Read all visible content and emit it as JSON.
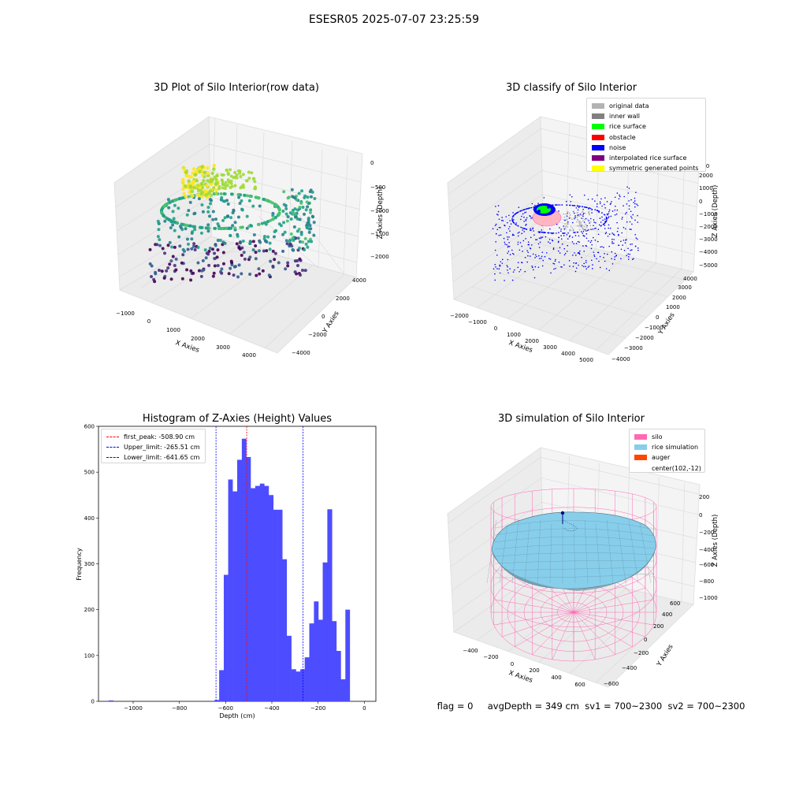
{
  "suptitle": "ESESR05 2025-07-07 23:25:59",
  "status_line": "flag = 0     avgDepth = 349 cm  sv1 = 700~2300  sv2 = 700~2300",
  "icons": {
    "rice-surface-marker": "green-dot-cluster",
    "auger-marker": "navy-dot"
  },
  "chart_data": [
    {
      "type": "scatter",
      "projection": "3d",
      "title": "3D Plot of Silo Interior(row data)",
      "xlabel": "X Axies",
      "ylabel": "Y Axies",
      "zlabel": "Z Axies (Depth)",
      "x_ticks": [
        "−1000",
        "0",
        "1000",
        "2000",
        "3000",
        "4000"
      ],
      "y_ticks": [
        "−4000",
        "−2000",
        "0",
        "2000",
        "4000"
      ],
      "z_ticks": [
        "0",
        "−500",
        "−1000",
        "−1500",
        "−2000"
      ],
      "xlim": [
        -1300,
        4600
      ],
      "ylim": [
        -4800,
        4800
      ],
      "zlim": [
        -2300,
        100
      ],
      "colormap": "viridis",
      "grid": true
    },
    {
      "type": "scatter",
      "projection": "3d",
      "title": "3D classify of Silo Interior",
      "xlabel": "X Axies",
      "ylabel": "Y Axies",
      "zlabel": "Z Axies (Depth)",
      "x_ticks": [
        "−2000",
        "−1000",
        "0",
        "1000",
        "2000",
        "3000",
        "4000",
        "5000"
      ],
      "y_ticks": [
        "−4000",
        "−3000",
        "−2000",
        "−1000",
        "0",
        "1000",
        "2000",
        "3000",
        "4000"
      ],
      "z_ticks": [
        "2000",
        "1000",
        "0",
        "−1000",
        "−2000",
        "−3000",
        "−4000",
        "−5000"
      ],
      "z_tick_partial_top": "000",
      "legend": [
        {
          "label": "original data",
          "color": "#b3b3b3"
        },
        {
          "label": "inner wall",
          "color": "#808080"
        },
        {
          "label": "rice surface",
          "color": "#00ff00"
        },
        {
          "label": "obstacle",
          "color": "#ff0000"
        },
        {
          "label": "noise",
          "color": "#0000ff"
        },
        {
          "label": "interpolated rice surface",
          "color": "#800080"
        },
        {
          "label": "symmetric generated points",
          "color": "#ffff00"
        }
      ],
      "legend_position": "top-right",
      "grid": true
    },
    {
      "type": "bar",
      "subtype": "histogram",
      "title": "Histogram of Z-Axies (Height) Values",
      "xlabel": "Depth (cm)",
      "ylabel": "Frequency",
      "xlim": [
        -1150,
        50
      ],
      "ylim": [
        0,
        600
      ],
      "x_ticks": [
        "−1000",
        "−800",
        "−600",
        "−400",
        "−200",
        "0"
      ],
      "y_ticks": [
        "0",
        "100",
        "200",
        "300",
        "400",
        "500",
        "600"
      ],
      "bar_color": "#4d4dff",
      "bins": [
        {
          "x0": -1106,
          "x1": -1086,
          "count": 2
        },
        {
          "x0": -648,
          "x1": -628,
          "count": 3
        },
        {
          "x0": -628,
          "x1": -608,
          "count": 68
        },
        {
          "x0": -608,
          "x1": -589,
          "count": 276
        },
        {
          "x0": -589,
          "x1": -570,
          "count": 484
        },
        {
          "x0": -570,
          "x1": -550,
          "count": 458
        },
        {
          "x0": -550,
          "x1": -530,
          "count": 527
        },
        {
          "x0": -530,
          "x1": -511,
          "count": 573
        },
        {
          "x0": -511,
          "x1": -492,
          "count": 533
        },
        {
          "x0": -492,
          "x1": -472,
          "count": 465
        },
        {
          "x0": -472,
          "x1": -452,
          "count": 470
        },
        {
          "x0": -452,
          "x1": -433,
          "count": 475
        },
        {
          "x0": -433,
          "x1": -414,
          "count": 470
        },
        {
          "x0": -414,
          "x1": -394,
          "count": 450
        },
        {
          "x0": -394,
          "x1": -374,
          "count": 418
        },
        {
          "x0": -374,
          "x1": -355,
          "count": 418
        },
        {
          "x0": -355,
          "x1": -336,
          "count": 310
        },
        {
          "x0": -336,
          "x1": -316,
          "count": 143
        },
        {
          "x0": -316,
          "x1": -296,
          "count": 70
        },
        {
          "x0": -296,
          "x1": -277,
          "count": 65
        },
        {
          "x0": -277,
          "x1": -258,
          "count": 70
        },
        {
          "x0": -258,
          "x1": -238,
          "count": 96
        },
        {
          "x0": -238,
          "x1": -218,
          "count": 170
        },
        {
          "x0": -218,
          "x1": -199,
          "count": 218
        },
        {
          "x0": -199,
          "x1": -180,
          "count": 178
        },
        {
          "x0": -180,
          "x1": -160,
          "count": 303
        },
        {
          "x0": -160,
          "x1": -140,
          "count": 419
        },
        {
          "x0": -140,
          "x1": -121,
          "count": 175
        },
        {
          "x0": -121,
          "x1": -102,
          "count": 110
        },
        {
          "x0": -102,
          "x1": -82,
          "count": 48
        },
        {
          "x0": -82,
          "x1": -63,
          "count": 200
        }
      ],
      "vlines": [
        {
          "label": "first_peak: -508.90 cm",
          "x": -508.9,
          "color": "#ff0000"
        },
        {
          "label": "Upper_limit: -265.51 cm",
          "x": -265.51,
          "color": "#0000ff"
        },
        {
          "label": "Lower_limit: -641.65 cm",
          "x": -641.65,
          "color": "#0000ff"
        }
      ],
      "legend_position": "top-left",
      "grid": false
    },
    {
      "type": "area",
      "projection": "3d",
      "title": "3D simulation of Silo Interior",
      "xlabel": "X Axies",
      "ylabel": "Y Axies",
      "zlabel": "Z Axies (Depth)",
      "x_ticks": [
        "−400",
        "−200",
        "0",
        "200",
        "400",
        "600"
      ],
      "y_ticks": [
        "−600",
        "−400",
        "−200",
        "0",
        "200",
        "400",
        "600"
      ],
      "z_ticks": [
        "200",
        "0",
        "−200",
        "−400",
        "−600",
        "−800",
        "−1000"
      ],
      "legend": [
        {
          "label": "silo",
          "color": "#ff69b4"
        },
        {
          "label": "rice simulation",
          "color": "#87ceeb"
        },
        {
          "label": "auger",
          "color": "#ff4500"
        },
        {
          "label": "center(102,-12)",
          "color": ""
        }
      ],
      "legend_position": "top-right",
      "center": [
        102,
        -12
      ],
      "grid": true
    }
  ]
}
